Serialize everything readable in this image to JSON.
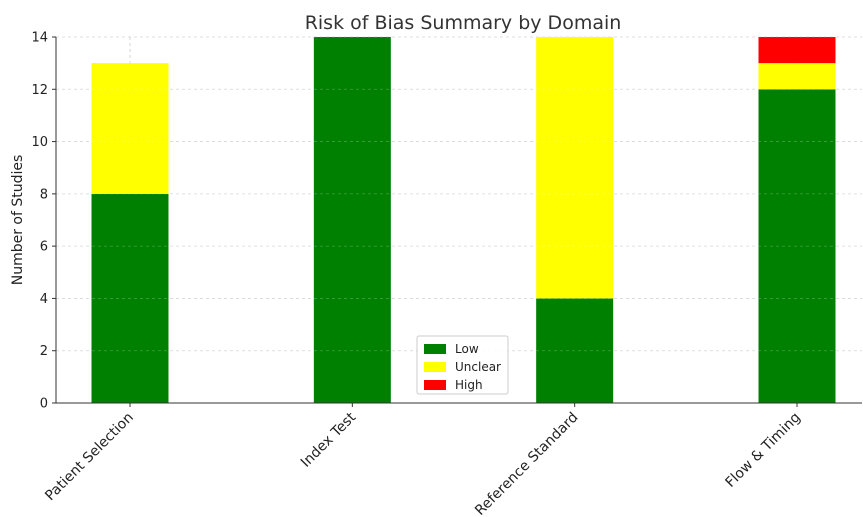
{
  "chart_data": {
    "type": "bar",
    "stacked": true,
    "title": "Risk of Bias Summary by Domain",
    "xlabel": "",
    "ylabel": "Number of Studies",
    "categories": [
      "Patient Selection",
      "Index Test",
      "Reference Standard",
      "Flow & Timing"
    ],
    "series": [
      {
        "name": "Low",
        "color": "#008000",
        "values": [
          8,
          14,
          4,
          12
        ]
      },
      {
        "name": "Unclear",
        "color": "#ffff00",
        "values": [
          5,
          0,
          10,
          1
        ]
      },
      {
        "name": "High",
        "color": "#ff0000",
        "values": [
          0,
          0,
          0,
          1
        ]
      }
    ],
    "ylim": [
      0,
      14
    ],
    "yticks": [
      0,
      2,
      4,
      6,
      8,
      10,
      12,
      14
    ],
    "grid": true,
    "legend_position": "bottom-center"
  }
}
